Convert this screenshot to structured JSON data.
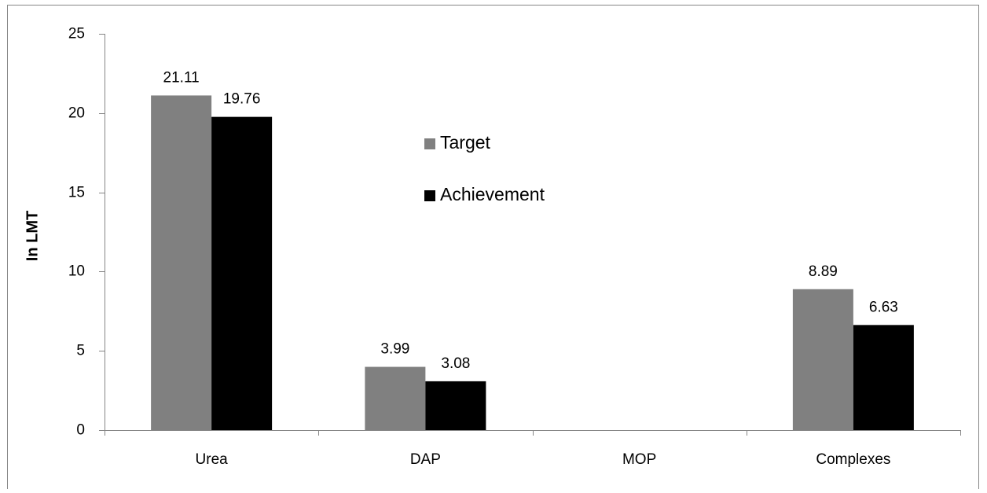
{
  "chart_data": {
    "type": "bar",
    "y_label": "In LMT",
    "categories": [
      "Urea",
      "DAP",
      "MOP",
      "Complexes"
    ],
    "series": [
      {
        "name": "Target",
        "color": "#808080",
        "values": [
          21.11,
          3.99,
          null,
          8.89
        ]
      },
      {
        "name": "Achievement",
        "color": "#000000",
        "values": [
          19.76,
          3.08,
          null,
          6.63
        ]
      }
    ],
    "ylim": [
      0,
      25
    ],
    "yticks": [
      0,
      5,
      10,
      15,
      20,
      25
    ],
    "grid": false,
    "legend": "inside-center"
  }
}
